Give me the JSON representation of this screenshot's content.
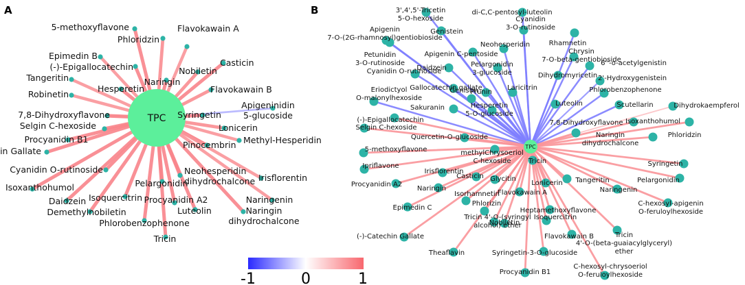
{
  "panels": [
    {
      "label": "A",
      "hub": "TPC",
      "nodes": [
        {
          "t": "5-methoxyflavone",
          "v": 0.8
        },
        {
          "t": "Phloridzin",
          "v": 0.75
        },
        {
          "t": "Flavokawain A",
          "v": 0.7
        },
        {
          "t": "Epimedin B",
          "v": 0.7
        },
        {
          "t": "(-)-Epigallocatechin",
          "v": 0.8
        },
        {
          "t": "Casticin",
          "v": 0.8
        },
        {
          "t": "Nobiletin",
          "v": 0.75
        },
        {
          "t": "Tangeritin",
          "v": 0.7
        },
        {
          "t": "Naringin",
          "v": 0.8
        },
        {
          "t": "Hesperetin",
          "v": 0.8
        },
        {
          "t": "Robinetin",
          "v": 0.7
        },
        {
          "t": "Flavokawain B",
          "v": 0.75
        },
        {
          "t": "7,8-Dihydroxyflavone",
          "v": 0.85
        },
        {
          "t": "Apigeninidin 5-glucoside",
          "v": -0.35
        },
        {
          "t": "Syringetin",
          "v": 0.8
        },
        {
          "t": "Selgin C-hexoside",
          "v": 0.8
        },
        {
          "t": "Lonicerin",
          "v": 0.75
        },
        {
          "t": "Procyanidin B1",
          "v": 0.8
        },
        {
          "t": "Methyl-Hesperidin",
          "v": 0.7
        },
        {
          "t": "(-)-Catechin Gallate",
          "v": 0.8
        },
        {
          "t": "Pinocembrin",
          "v": 0.85
        },
        {
          "t": "Cyanidin O-rutinoside",
          "v": 0.8
        },
        {
          "t": "Neohesperidin dihydrochalcone",
          "v": 0.8
        },
        {
          "t": "Irisflorentin",
          "v": 0.7
        },
        {
          "t": "Pelargonidin",
          "v": 0.8
        },
        {
          "t": "Isoxanthohumol",
          "v": 0.8
        },
        {
          "t": "Isoquercitrin",
          "v": 0.8
        },
        {
          "t": "Procyanidin A2",
          "v": 0.8
        },
        {
          "t": "Naringenin",
          "v": 0.7
        },
        {
          "t": "Daidzein",
          "v": 0.8
        },
        {
          "t": "Luteolin",
          "v": 0.8
        },
        {
          "t": "Demethylnobiletin",
          "v": 0.8
        },
        {
          "t": "Naringin dihydrochalcone",
          "v": 0.8
        },
        {
          "t": "Phlorobenzophenone",
          "v": 0.8
        },
        {
          "t": "Tricin",
          "v": 0.8
        }
      ]
    },
    {
      "label": "B",
      "hub": "TPC",
      "nodes": [
        {
          "t": "3',4',5'-Tricetin 5-O-hexoside",
          "v": -0.6
        },
        {
          "t": "di-C,C-pentosyl-luteolin",
          "v": -0.6
        },
        {
          "t": "Apigenin 7-O-(2G-rhamnosyl)gentiobioside",
          "v": -0.6
        },
        {
          "t": "Genistein",
          "v": -0.6
        },
        {
          "t": "Cyanidin 3-O-rutinoside",
          "v": -0.6
        },
        {
          "t": "Rhamnetin",
          "v": -0.6
        },
        {
          "t": "Petunidin 3-O-rutinoside",
          "v": -0.6
        },
        {
          "t": "Apigenin C-pentoside",
          "v": -0.6
        },
        {
          "t": "Neohesperidin",
          "v": -0.6
        },
        {
          "t": "Chrysin 7-O-beta-gentiobioside",
          "v": -0.6
        },
        {
          "t": "6''-o-acetylgenistin",
          "v": -0.6
        },
        {
          "t": "Daidzein",
          "v": -0.6
        },
        {
          "t": "Pelargonidin 3-glucoside",
          "v": -0.6
        },
        {
          "t": "Dihydromyricetin",
          "v": -0.6
        },
        {
          "t": "2'-Hydroxygenistein",
          "v": -0.5
        },
        {
          "t": "Cyanidin O-rutinoside",
          "v": -0.6
        },
        {
          "t": "Gallocatechin gallate",
          "v": -0.6
        },
        {
          "t": "Prunin",
          "v": -0.6
        },
        {
          "t": "Laricitrin",
          "v": -0.6
        },
        {
          "t": "Phlorobenzophenone",
          "v": -0.6
        },
        {
          "t": "Eriodictyol O-malonylhexoside",
          "v": -0.6
        },
        {
          "t": "Genistin",
          "v": -0.6
        },
        {
          "t": "Luteolin",
          "v": -0.6
        },
        {
          "t": "Scutellarin",
          "v": -0.6
        },
        {
          "t": "Dihydrokaempferol",
          "v": 0.4
        },
        {
          "t": "Sakuranin",
          "v": -0.6
        },
        {
          "t": "Hesperetin 5-O-glucoside",
          "v": -0.6
        },
        {
          "t": "(-)-Epigallocatechin",
          "v": 0.7
        },
        {
          "t": "7,8-Dihydroxyflavone",
          "v": 0.7
        },
        {
          "t": "Isoxanthohumol",
          "v": 0.7
        },
        {
          "t": "Selgin C-hexoside",
          "v": 0.7
        },
        {
          "t": "Quercetin-O-glucoside",
          "v": 0.7
        },
        {
          "t": "Naringin dihydrochalcone",
          "v": 0.7
        },
        {
          "t": "Phloridzin",
          "v": 0.7
        },
        {
          "t": "5-methoxyflavone",
          "v": 0.7
        },
        {
          "t": "methylChrysoeriol C-hexoside",
          "v": 0.7
        },
        {
          "t": "Tricin",
          "v": 0.7
        },
        {
          "t": "Syringetin",
          "v": 0.7
        },
        {
          "t": "Ipriflavone",
          "v": 0.7
        },
        {
          "t": "Irisflorentin",
          "v": 0.7
        },
        {
          "t": "Pelargonidin",
          "v": 0.7
        },
        {
          "t": "Procyanidin A2",
          "v": 0.7
        },
        {
          "t": "Naringin",
          "v": 0.7
        },
        {
          "t": "Casticin",
          "v": 0.7
        },
        {
          "t": "Glycitin",
          "v": 0.7
        },
        {
          "t": "Lonicerin",
          "v": 0.7
        },
        {
          "t": "Tangeritin",
          "v": 0.7
        },
        {
          "t": "Naringenin",
          "v": 0.7
        },
        {
          "t": "Epimedin C",
          "v": 0.7
        },
        {
          "t": "Isorhamnetin",
          "v": 0.7
        },
        {
          "t": "Flavokawain A",
          "v": 0.7
        },
        {
          "t": "Heptamethoxyflavone",
          "v": 0.7
        },
        {
          "t": "C-hexosyl-apigenin O-feruloylhexoside",
          "v": 0.7
        },
        {
          "t": "Phlorizin",
          "v": 0.7
        },
        {
          "t": "Tricin 4'-O-(syringyl alcohol) ether",
          "v": 0.7
        },
        {
          "t": "Nobiletin",
          "v": 0.7
        },
        {
          "t": "Isoquercitrin",
          "v": 0.7
        },
        {
          "t": "Tricin 4'-O-(beta-guaiacylglyceryl) ether",
          "v": 0.7
        },
        {
          "t": "(-)-Catechin Gallate",
          "v": 0.7
        },
        {
          "t": "Flavokawain B",
          "v": 0.7
        },
        {
          "t": "Syringetin-3-O-glucoside",
          "v": 0.7
        },
        {
          "t": "Theaflavin",
          "v": 0.7
        },
        {
          "t": "Procyanidin B1",
          "v": 0.7
        },
        {
          "t": "C-hexosyl-chrysoeriol O-feruloylhexoside",
          "v": 0.7
        }
      ]
    }
  ],
  "colorbar": {
    "ticks": [
      "-1",
      "0",
      "1"
    ],
    "low": "#3b3bff",
    "mid": "#ffffff",
    "high": "#f8676e"
  },
  "colors": {
    "node": "#2db3a6",
    "hubA": "#5cef9b",
    "hubB": "#5cef9b"
  }
}
